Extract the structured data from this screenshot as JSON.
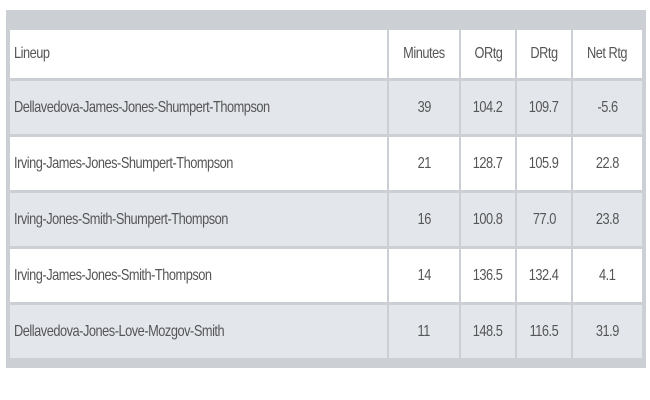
{
  "table": {
    "headers": [
      "Lineup",
      "Minutes",
      "ORtg",
      "DRtg",
      "Net Rtg"
    ],
    "rows": [
      [
        "Dellavedova-James-Jones-Shumpert-Thompson",
        "39",
        "104.2",
        "109.7",
        "-5.6"
      ],
      [
        "Irving-James-Jones-Shumpert-Thompson",
        "21",
        "128.7",
        "105.9",
        "22.8"
      ],
      [
        "Irving-Jones-Smith-Shumpert-Thompson",
        "16",
        "100.8",
        "77.0",
        "23.8"
      ],
      [
        "Irving-James-Jones-Smith-Thompson",
        "14",
        "136.5",
        "132.4",
        "4.1"
      ],
      [
        "Dellavedova-Jones-Love-Mozgov-Smith",
        "11",
        "148.5",
        "116.5",
        "31.9"
      ]
    ]
  }
}
